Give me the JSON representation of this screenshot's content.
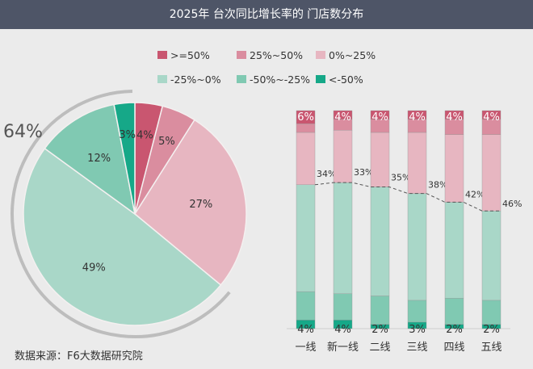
{
  "title": "2025年 台次同比增长率的 门店数分布",
  "source": "数据来源：F6大数据研究院",
  "colors": {
    ">=50%": "#c95670",
    "25%~50%": "#da8d9f",
    "0%~25%": "#e7b6c1",
    "-25%~0%": "#a9d7c8",
    "-50%~-25%": "#80c9b2",
    "<-50%": "#16a888"
  },
  "chart_data": [
    {
      "type": "pie",
      "legend": [
        ">=50%",
        "25%~50%",
        "0%~25%",
        "-25%~0%",
        "-50%~-25%",
        "<-50%"
      ],
      "legend_position": "top",
      "slices": [
        {
          "label": ">=50%",
          "value": 4
        },
        {
          "label": "25%~50%",
          "value": 5
        },
        {
          "label": "0%~25%",
          "value": 27
        },
        {
          "label": "-25%~0%",
          "value": 49
        },
        {
          "label": "-50%~-25%",
          "value": 12
        },
        {
          "label": "<-50%",
          "value": 3
        }
      ],
      "annotation": "64%"
    },
    {
      "type": "bar",
      "stacked": true,
      "percent": true,
      "categories": [
        "一线",
        "新一线",
        "二线",
        "三线",
        "四线",
        "五线"
      ],
      "series": [
        {
          "name": "<-50%",
          "values": [
            4,
            4,
            2,
            3,
            2,
            2
          ]
        },
        {
          "name": "-50%~-25%",
          "values": [
            13,
            12,
            13,
            10,
            12,
            11
          ]
        },
        {
          "name": "-25%~0%",
          "values": [
            49,
            51,
            50,
            49,
            44,
            41
          ]
        },
        {
          "name": "0%~25%",
          "values": [
            24,
            24,
            25,
            28,
            31,
            35
          ]
        },
        {
          "name": "25%~50%",
          "values": [
            4,
            5,
            6,
            6,
            7,
            7
          ]
        },
        {
          "name": ">=50%",
          "values": [
            6,
            4,
            4,
            4,
            4,
            4
          ]
        }
      ],
      "positive_share": [
        34,
        33,
        35,
        38,
        42,
        46
      ],
      "positive_share_labels": [
        "34%",
        "33%",
        "35%",
        "38%",
        "42%",
        "46%"
      ]
    }
  ]
}
